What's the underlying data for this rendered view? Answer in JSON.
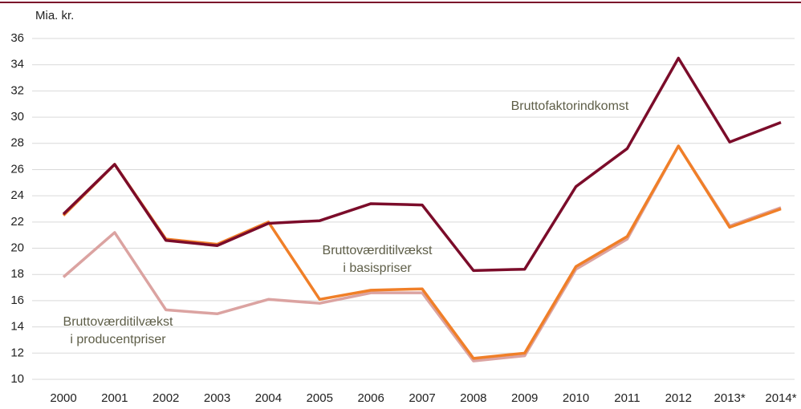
{
  "chart_data": {
    "type": "line",
    "y_label": "Mia. kr.",
    "categories": [
      "2000",
      "2001",
      "2002",
      "2003",
      "2004",
      "2005",
      "2006",
      "2007",
      "2008",
      "2009",
      "2010",
      "2011",
      "2012",
      "2013*",
      "2014*"
    ],
    "series": [
      {
        "name": [
          "Bruttoværditilvækst",
          "i producentpriser"
        ],
        "color": "#dba3a1",
        "values": [
          17.8,
          21.2,
          15.3,
          15.0,
          16.1,
          15.8,
          16.6,
          16.6,
          11.4,
          11.8,
          18.4,
          20.7,
          27.8,
          21.7,
          23.1
        ]
      },
      {
        "name": [
          "Bruttoværditilvækst",
          "i basispriser"
        ],
        "color": "#f07f28",
        "values": [
          22.5,
          26.4,
          20.7,
          20.3,
          22.0,
          16.1,
          16.8,
          16.9,
          11.6,
          12.0,
          18.6,
          20.9,
          27.8,
          21.6,
          23.0
        ]
      },
      {
        "name": [
          "Bruttofaktorindkomst"
        ],
        "color": "#7b0c2a",
        "values": [
          22.6,
          26.4,
          20.6,
          20.2,
          21.9,
          22.1,
          23.4,
          23.3,
          18.3,
          18.4,
          24.7,
          27.6,
          34.5,
          28.1,
          29.6
        ]
      }
    ],
    "ylim": [
      10,
      36
    ],
    "yticks": [
      10,
      12,
      14,
      16,
      18,
      20,
      22,
      24,
      26,
      28,
      30,
      32,
      34,
      36
    ],
    "grid": true
  }
}
